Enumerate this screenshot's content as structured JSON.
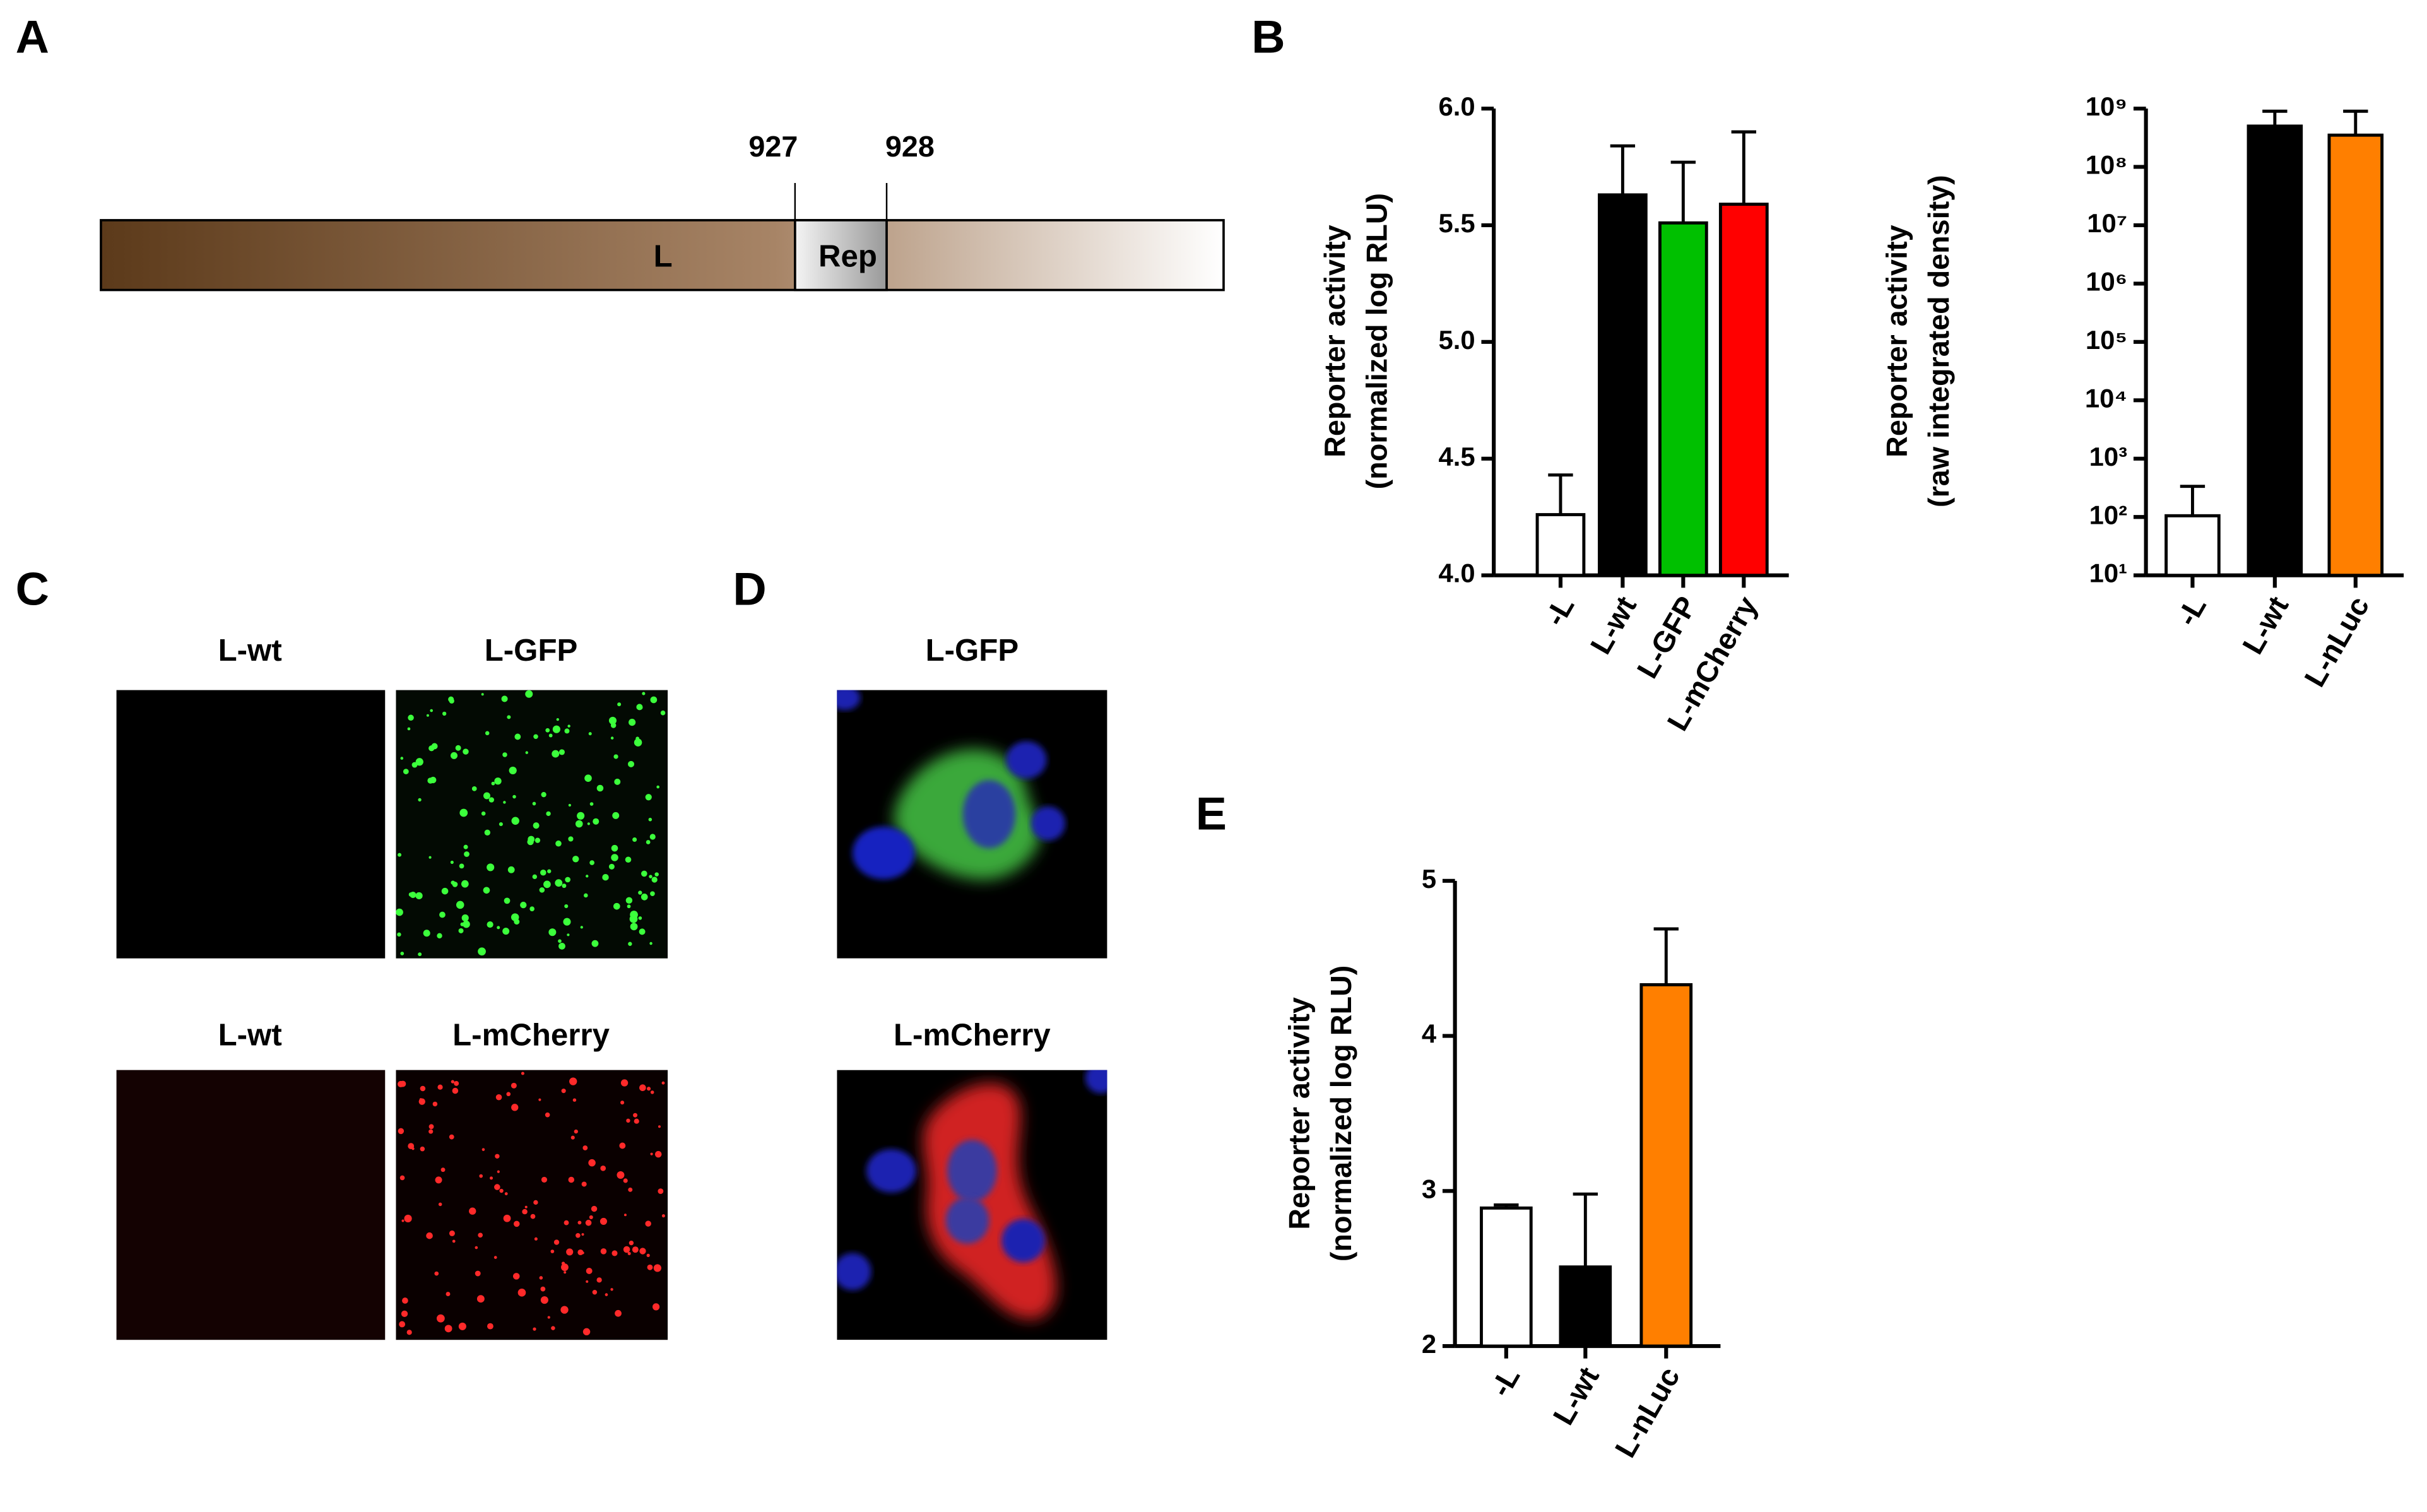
{
  "panel_labels": [
    "A",
    "B",
    "C",
    "D",
    "E"
  ],
  "diagram": {
    "region_label": "L",
    "insert_label": "Rep",
    "start_position": "927",
    "end_position": "928"
  },
  "panel_c": {
    "top_labels": [
      "L-wt",
      "L-GFP"
    ],
    "bottom_labels": [
      "L-wt",
      "L-mCherry"
    ]
  },
  "panel_d": {
    "top_label": "L-GFP",
    "bottom_label": "L-mCherry"
  },
  "chart_data": [
    {
      "type": "bar",
      "ylabel": [
        "Reporter activity",
        "(normalized log RLU)"
      ],
      "categories": [
        "-L",
        "L-wt",
        "L-GFP",
        "L-mCherry"
      ],
      "values": [
        4.26,
        5.63,
        5.51,
        5.59
      ],
      "errors": [
        0.17,
        0.21,
        0.26,
        0.31
      ],
      "colors": [
        "#ffffff",
        "#000000",
        "#00c000",
        "#ff0000"
      ],
      "ylim": [
        4,
        6
      ],
      "yticks": [
        {
          "value": 4,
          "label": "4.0"
        },
        4.5,
        {
          "value": 5,
          "label": "5.0"
        },
        5.5,
        {
          "value": 6,
          "label": "6.0"
        }
      ]
    },
    {
      "type": "bar",
      "log": true,
      "ylabel": [
        "Reporter activity",
        "(raw integrated density)"
      ],
      "categories": [
        "-L",
        "L-wt",
        "L-nLuc"
      ],
      "values": [
        105,
        500000000,
        350000000
      ],
      "errors": [
        230,
        400000000,
        550000000
      ],
      "colors": [
        "#ffffff",
        "#000000",
        "#ff7f00"
      ],
      "ylim": [
        10,
        1000000000
      ],
      "yticks": [
        {
          "value": 10,
          "label": "10¹"
        },
        {
          "value": 100,
          "label": "10²"
        },
        {
          "value": 1000,
          "label": "10³"
        },
        {
          "value": 10000,
          "label": "10⁴"
        },
        {
          "value": 100000,
          "label": "10⁵"
        },
        {
          "value": 1000000,
          "label": "10⁶"
        },
        {
          "value": 10000000,
          "label": "10⁷"
        },
        {
          "value": 100000000,
          "label": "10⁸"
        },
        {
          "value": 1000000000,
          "label": "10⁹"
        }
      ]
    },
    {
      "type": "bar",
      "ylabel": [
        "Reporter activity",
        "(normalized log RLU)"
      ],
      "categories": [
        "-L",
        "L-wt",
        "L-nLuc"
      ],
      "values": [
        2.89,
        2.51,
        4.33
      ],
      "errors": [
        0.02,
        0.47,
        0.36
      ],
      "colors": [
        "#ffffff",
        "#000000",
        "#ff7f00"
      ],
      "ylim": [
        2,
        5
      ],
      "yticks": [
        2,
        3,
        4,
        5
      ]
    }
  ]
}
